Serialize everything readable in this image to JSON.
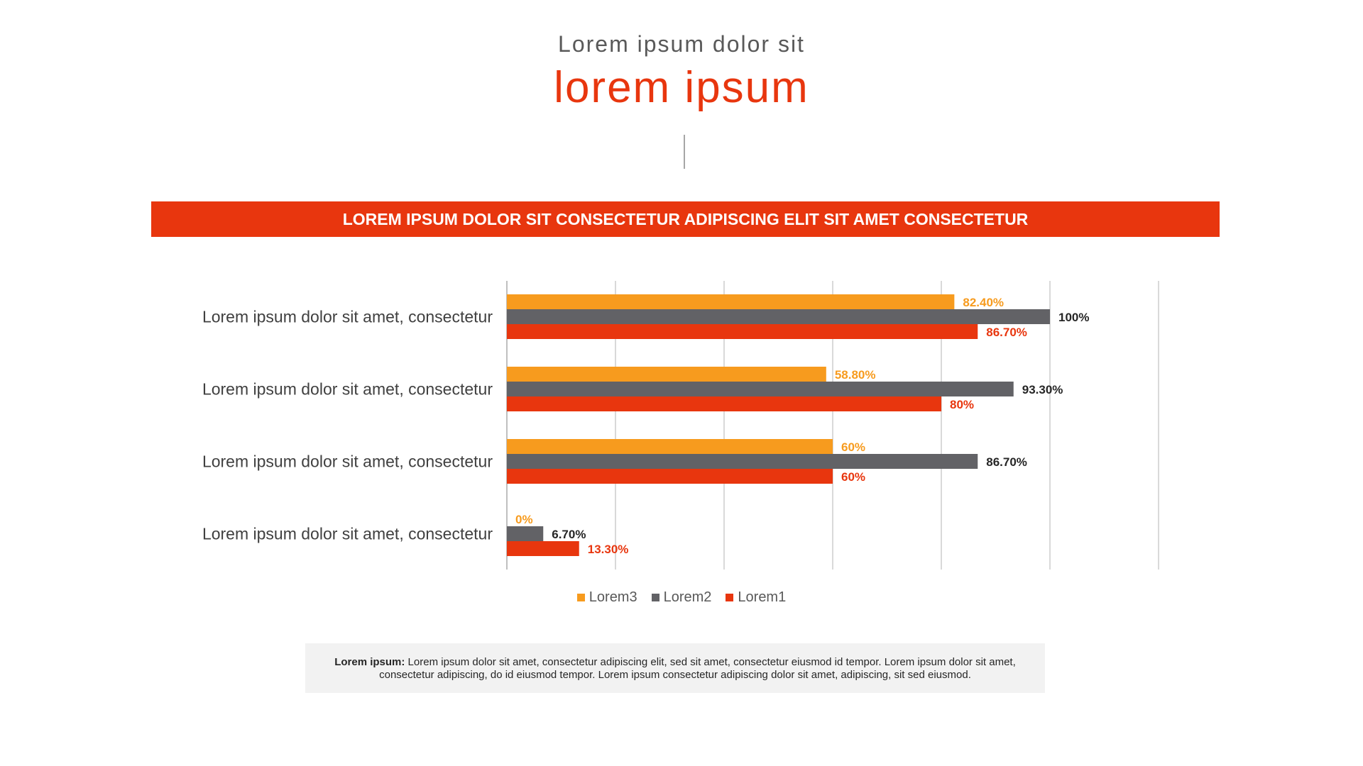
{
  "header": {
    "supertitle": "Lorem ipsum dolor sit",
    "title": "lorem ipsum"
  },
  "banner": {
    "text": "LOREM IPSUM DOLOR SIT CONSECTETUR ADIPISCING ELIT SIT AMET CONSECTETUR"
  },
  "chart_data": {
    "type": "bar",
    "orientation": "horizontal",
    "categories": [
      "Lorem ipsum dolor sit amet, consectetur",
      "Lorem ipsum dolor sit amet, consectetur",
      "Lorem ipsum dolor sit amet, consectetur",
      "Lorem ipsum dolor sit amet, consectetur"
    ],
    "series": [
      {
        "name": "Lorem3",
        "color": "#f79b1e",
        "values": [
          82.4,
          58.8,
          60,
          0
        ],
        "labels": [
          "82.40%",
          "58.80%",
          "60%",
          "0%"
        ]
      },
      {
        "name": "Lorem2",
        "color": "#626266",
        "values": [
          100,
          93.3,
          86.7,
          6.7
        ],
        "labels": [
          "100%",
          "93.30%",
          "86.70%",
          "6.70%"
        ]
      },
      {
        "name": "Lorem1",
        "color": "#e8360e",
        "values": [
          86.7,
          80,
          60,
          13.3
        ],
        "labels": [
          "86.70%",
          "80%",
          "60%",
          "13.30%"
        ]
      }
    ],
    "xlim": [
      0,
      120
    ],
    "gridlines": true,
    "legend_position": "bottom",
    "label_colors": [
      "#f79b1e",
      "#262626",
      "#e8360e"
    ]
  },
  "footnote": {
    "lead": "Lorem ipsum:",
    "text": " Lorem ipsum dolor sit amet, consectetur adipiscing elit, sed sit amet, consectetur eiusmod id tempor. Lorem ipsum dolor sit amet, consectetur adipiscing, do id eiusmod tempor. Lorem ipsum consectetur adipiscing dolor sit amet, adipiscing, sit sed eiusmod."
  }
}
